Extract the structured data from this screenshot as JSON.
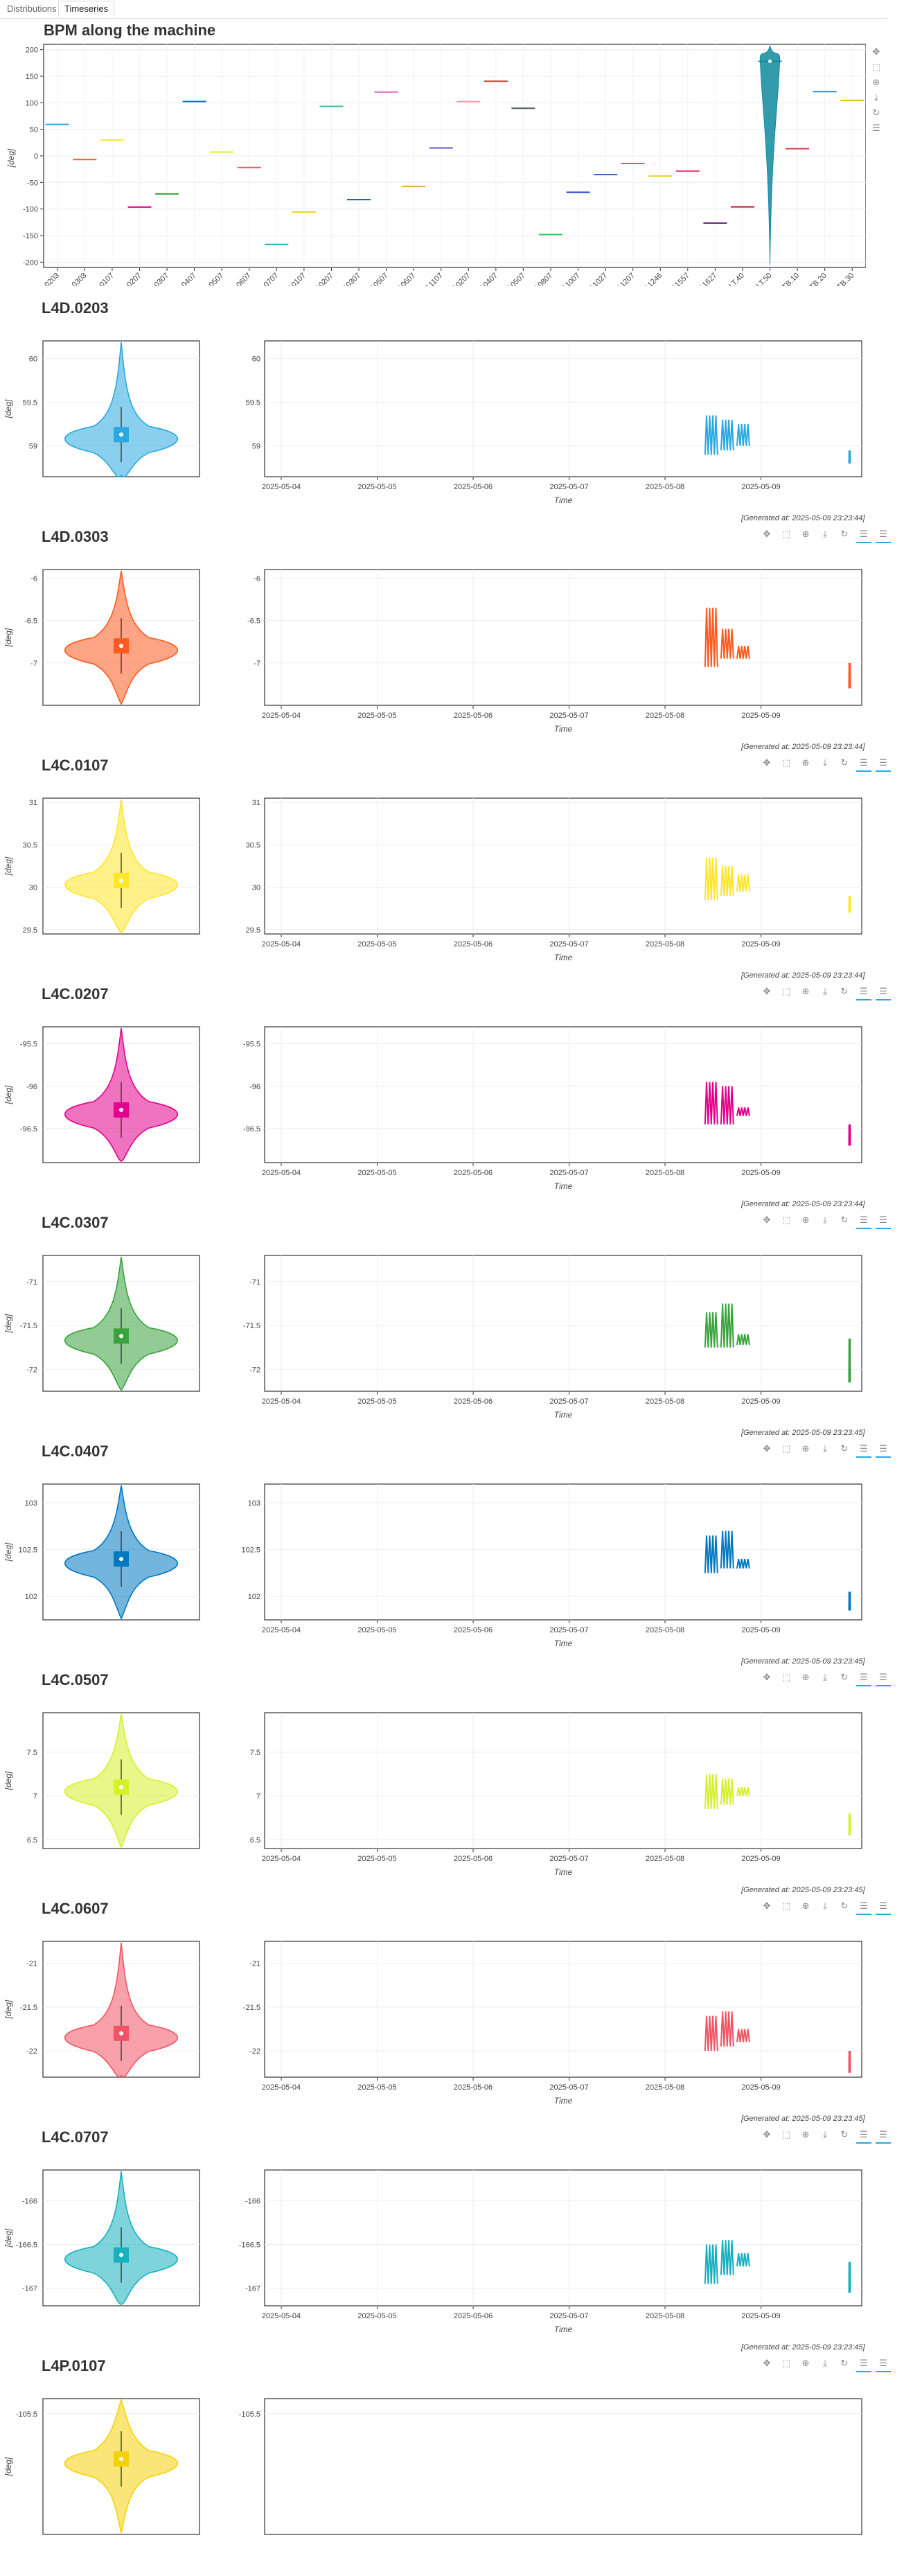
{
  "tabs": [
    {
      "label": "Distributions",
      "active": false
    },
    {
      "label": "Timeseries",
      "active": true
    }
  ],
  "toolbar_icons": [
    "pan-icon",
    "box-zoom-icon",
    "wheel-zoom-icon",
    "save-icon",
    "reset-icon",
    "hover-icon",
    "tap-icon"
  ],
  "overview": {
    "title": "BPM along the machine",
    "ylabel": "[deg]",
    "yticks": [
      "200",
      "150",
      "100",
      "50",
      "0",
      "-50",
      "-100",
      "-150",
      "-200"
    ],
    "chart_data": {
      "type": "violin",
      "title": "BPM along the machine",
      "ylabel": "[deg]",
      "ylim": [
        -210,
        210
      ],
      "categories": [
        "L4D.0203",
        "L4D.0303",
        "L4C.0107",
        "L4C.0207",
        "L4C.0307",
        "L4C.0407",
        "L4C.0507",
        "L4C.0607",
        "L4C.0707",
        "L4P.0107",
        "L4P.0207",
        "L4P.0307",
        "L4P.0507",
        "L4P.0607",
        "L4P.1107",
        "L4T.0207",
        "L4T.0407",
        "L4T.0507",
        "L4T.0807",
        "L4T.1007",
        "L4T.1027",
        "L4T.1207",
        "L4T.1246",
        "L4T.1557",
        "L4T.1627",
        "LT.40",
        "LT.50",
        "LTB.10",
        "LTB.20",
        "LTB.30"
      ],
      "values": [
        59.2,
        -6.8,
        30.1,
        -96.3,
        -71.6,
        102.4,
        7.1,
        -21.8,
        -166.6,
        -105.8,
        93.2,
        -82.4,
        120.1,
        -57.5,
        15.0,
        102.2,
        140.5,
        89.6,
        -148.0,
        -68.5,
        -35.2,
        -14.3,
        -38.0,
        -28.5,
        -126.5,
        -96.0,
        178.0,
        13.5,
        121.0,
        104.5
      ],
      "colors": [
        "#29a9e0",
        "#ff5a1f",
        "#ffe629",
        "#e3008c",
        "#39a33c",
        "#0079c1",
        "#d4f12a",
        "#f25465",
        "#16b0c0",
        "#f6d10a",
        "#28c6a0",
        "#1256c4",
        "#e86cc8",
        "#f2a53a",
        "#7253c4",
        "#ff9bab",
        "#e5352f",
        "#4e5d52",
        "#35c96a",
        "#1f3fd0",
        "#3570c5",
        "#f24f6a",
        "#e9d41f",
        "#e63a6d",
        "#5e2d86",
        "#c01a3a",
        "#0f8a9e",
        "#d63c5a",
        "#2f8ad3",
        "#e8b800"
      ]
    }
  },
  "panels": [
    {
      "name": "L4D.0203",
      "color": "#29a9e0",
      "ylabel": "[deg]",
      "vyticks": [
        "60",
        "59.5",
        "59"
      ],
      "tyticks": [
        "60",
        "59.5",
        "59"
      ],
      "xticks": [
        "2025-05-04",
        "2025-05-05",
        "2025-05-06",
        "2025-05-07",
        "2025-05-08",
        "2025-05-09"
      ],
      "xlabel": "Time",
      "generated": "[Generated at: 2025-05-09 23:23:44]",
      "chart_data": {
        "type": "violin+line",
        "center": 59.13,
        "ylim": [
          58.65,
          60.2
        ],
        "series_segments": [
          [
            "2025-05-08 10:00",
            58.9,
            59.35
          ],
          [
            "2025-05-08 14:00",
            58.95,
            59.3
          ],
          [
            "2025-05-08 18:00",
            59.0,
            59.25
          ],
          [
            "2025-05-09 22:00",
            58.8,
            58.95
          ]
        ]
      }
    },
    {
      "name": "L4D.0303",
      "color": "#ff5a1f",
      "ylabel": "[deg]",
      "vyticks": [
        "-6",
        "-6.5",
        "-7"
      ],
      "tyticks": [
        "-6",
        "-6.5",
        "-7"
      ],
      "xticks": [
        "2025-05-04",
        "2025-05-05",
        "2025-05-06",
        "2025-05-07",
        "2025-05-08",
        "2025-05-09"
      ],
      "xlabel": "Time",
      "generated": "[Generated at: 2025-05-09 23:23:44]",
      "chart_data": {
        "type": "violin+line",
        "center": -6.8,
        "ylim": [
          -7.5,
          -5.9
        ],
        "series_segments": [
          [
            "2025-05-08 10:00",
            -7.05,
            -6.35
          ],
          [
            "2025-05-08 14:00",
            -6.95,
            -6.6
          ],
          [
            "2025-05-08 18:00",
            -6.95,
            -6.8
          ],
          [
            "2025-05-09 22:00",
            -7.3,
            -7.0
          ]
        ]
      }
    },
    {
      "name": "L4C.0107",
      "color": "#ffe629",
      "ylabel": "[deg]",
      "vyticks": [
        "31",
        "30.5",
        "30",
        "29.5"
      ],
      "tyticks": [
        "31",
        "30.5",
        "30",
        "29.5"
      ],
      "xticks": [
        "2025-05-04",
        "2025-05-05",
        "2025-05-06",
        "2025-05-07",
        "2025-05-08",
        "2025-05-09"
      ],
      "xlabel": "Time",
      "generated": "[Generated at: 2025-05-09 23:23:44]",
      "chart_data": {
        "type": "violin+line",
        "center": 30.08,
        "ylim": [
          29.45,
          31.05
        ],
        "series_segments": [
          [
            "2025-05-08 10:00",
            29.85,
            30.35
          ],
          [
            "2025-05-08 14:00",
            29.9,
            30.25
          ],
          [
            "2025-05-08 18:00",
            29.95,
            30.15
          ],
          [
            "2025-05-09 22:00",
            29.7,
            29.9
          ]
        ]
      }
    },
    {
      "name": "L4C.0207",
      "color": "#e3008c",
      "ylabel": "[deg]",
      "vyticks": [
        "-95.5",
        "-96",
        "-96.5"
      ],
      "tyticks": [
        "-95.5",
        "-96",
        "-96.5"
      ],
      "xticks": [
        "2025-05-04",
        "2025-05-05",
        "2025-05-06",
        "2025-05-07",
        "2025-05-08",
        "2025-05-09"
      ],
      "xlabel": "Time",
      "generated": "[Generated at: 2025-05-09 23:23:44]",
      "chart_data": {
        "type": "violin+line",
        "center": -96.28,
        "ylim": [
          -96.9,
          -95.3
        ],
        "series_segments": [
          [
            "2025-05-08 10:00",
            -96.45,
            -95.95
          ],
          [
            "2025-05-08 14:00",
            -96.45,
            -96.0
          ],
          [
            "2025-05-08 18:00",
            -96.35,
            -96.25
          ],
          [
            "2025-05-09 22:00",
            -96.7,
            -96.45
          ]
        ]
      }
    },
    {
      "name": "L4C.0307",
      "color": "#39a33c",
      "ylabel": "[deg]",
      "vyticks": [
        "-71",
        "-71.5",
        "-72"
      ],
      "tyticks": [
        "-71",
        "-71.5",
        "-72"
      ],
      "xticks": [
        "2025-05-04",
        "2025-05-05",
        "2025-05-06",
        "2025-05-07",
        "2025-05-08",
        "2025-05-09"
      ],
      "xlabel": "Time",
      "generated": "[Generated at: 2025-05-09 23:23:45]",
      "chart_data": {
        "type": "violin+line",
        "center": -71.62,
        "ylim": [
          -72.25,
          -70.7
        ],
        "series_segments": [
          [
            "2025-05-08 10:00",
            -71.75,
            -71.35
          ],
          [
            "2025-05-08 14:00",
            -71.75,
            -71.25
          ],
          [
            "2025-05-08 18:00",
            -71.72,
            -71.6
          ],
          [
            "2025-05-09 22:00",
            -72.15,
            -71.65
          ]
        ]
      }
    },
    {
      "name": "L4C.0407",
      "color": "#0079c1",
      "ylabel": "[deg]",
      "vyticks": [
        "103",
        "102.5",
        "102"
      ],
      "tyticks": [
        "103",
        "102.5",
        "102"
      ],
      "xticks": [
        "2025-05-04",
        "2025-05-05",
        "2025-05-06",
        "2025-05-07",
        "2025-05-08",
        "2025-05-09"
      ],
      "xlabel": "Time",
      "generated": "[Generated at: 2025-05-09 23:23:45]",
      "chart_data": {
        "type": "violin+line",
        "center": 102.4,
        "ylim": [
          101.75,
          103.2
        ],
        "series_segments": [
          [
            "2025-05-08 10:00",
            102.25,
            102.65
          ],
          [
            "2025-05-08 14:00",
            102.3,
            102.7
          ],
          [
            "2025-05-08 18:00",
            102.3,
            102.4
          ],
          [
            "2025-05-09 22:00",
            101.85,
            102.05
          ]
        ]
      }
    },
    {
      "name": "L4C.0507",
      "color": "#d4f12a",
      "ylabel": "[deg]",
      "vyticks": [
        "7.5",
        "7",
        "6.5"
      ],
      "tyticks": [
        "7.5",
        "7",
        "6.5"
      ],
      "xticks": [
        "2025-05-04",
        "2025-05-05",
        "2025-05-06",
        "2025-05-07",
        "2025-05-08",
        "2025-05-09"
      ],
      "xlabel": "Time",
      "generated": "[Generated at: 2025-05-09 23:23:45]",
      "chart_data": {
        "type": "violin+line",
        "center": 7.1,
        "ylim": [
          6.4,
          7.95
        ],
        "series_segments": [
          [
            "2025-05-08 10:00",
            6.85,
            7.25
          ],
          [
            "2025-05-08 14:00",
            6.9,
            7.2
          ],
          [
            "2025-05-08 18:00",
            7.0,
            7.1
          ],
          [
            "2025-05-09 22:00",
            6.55,
            6.8
          ]
        ]
      }
    },
    {
      "name": "L4C.0607",
      "color": "#f25465",
      "ylabel": "[deg]",
      "vyticks": [
        "-21",
        "-21.5",
        "-22"
      ],
      "tyticks": [
        "-21",
        "-21.5",
        "-22"
      ],
      "xticks": [
        "2025-05-04",
        "2025-05-05",
        "2025-05-06",
        "2025-05-07",
        "2025-05-08",
        "2025-05-09"
      ],
      "xlabel": "Time",
      "generated": "[Generated at: 2025-05-09 23:23:45]",
      "chart_data": {
        "type": "violin+line",
        "center": -21.8,
        "ylim": [
          -22.3,
          -20.75
        ],
        "series_segments": [
          [
            "2025-05-08 10:00",
            -22.0,
            -21.6
          ],
          [
            "2025-05-08 14:00",
            -21.95,
            -21.55
          ],
          [
            "2025-05-08 18:00",
            -21.9,
            -21.75
          ],
          [
            "2025-05-09 22:00",
            -22.25,
            -22.0
          ]
        ]
      }
    },
    {
      "name": "L4C.0707",
      "color": "#16b0c0",
      "ylabel": "[deg]",
      "vyticks": [
        "-166",
        "-166.5",
        "-167"
      ],
      "tyticks": [
        "-166",
        "-166.5",
        "-167"
      ],
      "xticks": [
        "2025-05-04",
        "2025-05-05",
        "2025-05-06",
        "2025-05-07",
        "2025-05-08",
        "2025-05-09"
      ],
      "xlabel": "Time",
      "generated": "[Generated at: 2025-05-09 23:23:45]",
      "chart_data": {
        "type": "violin+line",
        "center": -166.62,
        "ylim": [
          -167.2,
          -165.65
        ],
        "series_segments": [
          [
            "2025-05-08 10:00",
            -166.95,
            -166.5
          ],
          [
            "2025-05-08 14:00",
            -166.85,
            -166.45
          ],
          [
            "2025-05-08 18:00",
            -166.75,
            -166.6
          ],
          [
            "2025-05-09 22:00",
            -167.05,
            -166.7
          ]
        ]
      }
    },
    {
      "name": "L4P.0107",
      "color": "#f6d10a",
      "ylabel": "[deg]",
      "vyticks": [
        "-105.5"
      ],
      "tyticks": [
        "-105.5"
      ],
      "xticks": [],
      "xlabel": "",
      "generated": "",
      "chart_data": {
        "type": "violin+line",
        "center": -105.8,
        "ylim": [
          -106.3,
          -105.4
        ],
        "series_segments": []
      }
    }
  ]
}
